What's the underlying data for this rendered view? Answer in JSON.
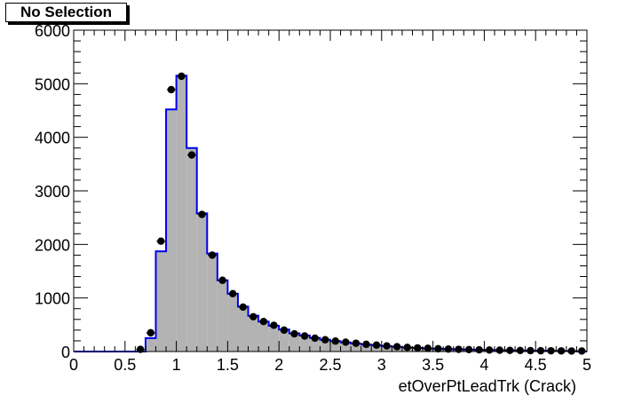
{
  "chart_data": {
    "type": "bar",
    "title": "No Selection",
    "xlabel": "etOverPtLeadTrk (Crack)",
    "ylabel": "",
    "xlim": [
      0,
      5
    ],
    "ylim": [
      0,
      6000
    ],
    "x_ticks": [
      "0",
      "0.5",
      "1",
      "1.5",
      "2",
      "2.5",
      "3",
      "3.5",
      "4",
      "4.5",
      "5"
    ],
    "y_ticks": [
      "0",
      "1000",
      "2000",
      "3000",
      "4000",
      "5000",
      "6000"
    ],
    "bin_edges_start": 0,
    "bin_width": 0.1,
    "grid": false,
    "legend": "none",
    "colors": {
      "fill": "#b3b3b3",
      "line": "#0000ee",
      "points": "#000000"
    },
    "series": [
      {
        "kind": "histogram",
        "values": [
          0,
          0,
          0,
          0,
          0,
          0,
          0,
          250,
          1870,
          4520,
          5150,
          3800,
          2580,
          1830,
          1330,
          1080,
          840,
          670,
          560,
          480,
          410,
          340,
          300,
          255,
          220,
          195,
          170,
          150,
          130,
          115,
          100,
          88,
          76,
          66,
          58,
          51,
          45,
          40,
          35,
          31,
          28,
          25,
          22,
          19,
          17,
          15,
          13,
          11,
          9,
          0
        ]
      },
      {
        "kind": "points",
        "values": [
          0,
          0,
          0,
          0,
          0,
          0,
          40,
          350,
          2060,
          4890,
          5140,
          3670,
          2560,
          1800,
          1330,
          1080,
          830,
          650,
          560,
          490,
          400,
          330,
          290,
          250,
          220,
          195,
          175,
          155,
          135,
          120,
          105,
          90,
          78,
          68,
          60,
          52,
          46,
          41,
          36,
          32,
          28,
          25,
          22,
          20,
          17,
          15,
          14,
          12,
          10,
          9
        ]
      }
    ]
  }
}
